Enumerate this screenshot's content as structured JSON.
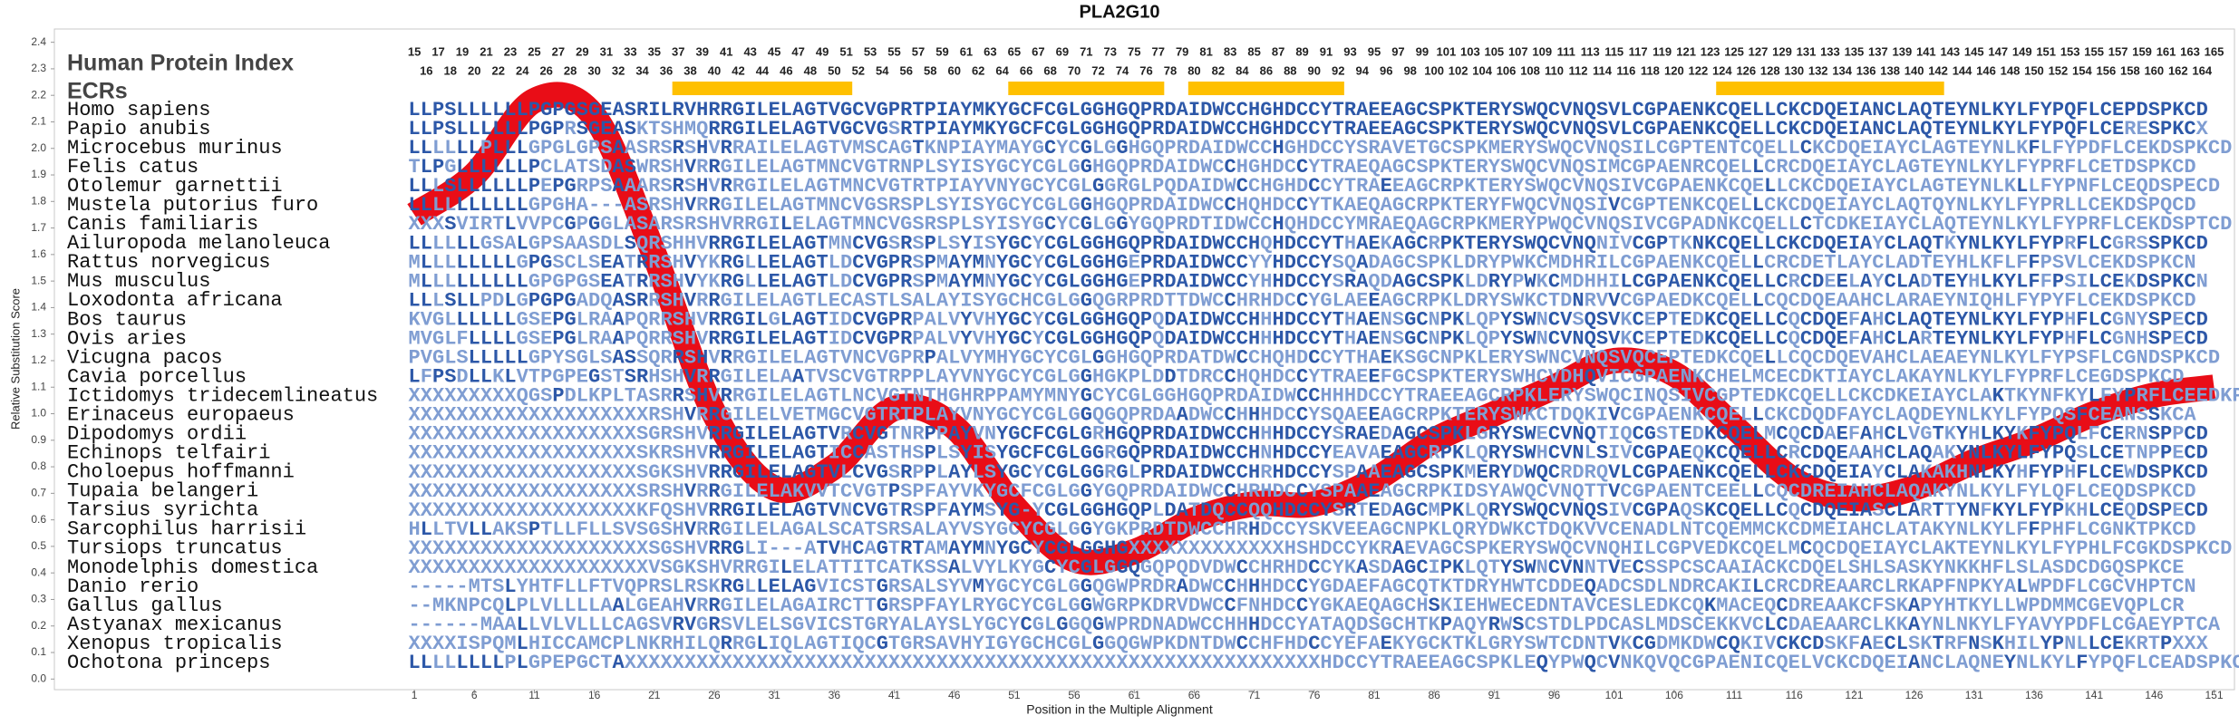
{
  "chart_data": {
    "type": "line",
    "title": "PLA2G10",
    "ylabel": "Relative Substitution Score",
    "xlabel": "Position in the Multiple Alignment",
    "xlim": [
      -29,
      152.7
    ],
    "ylim": [
      -0.04,
      2.45
    ],
    "xticks": [
      1,
      6,
      11,
      16,
      21,
      26,
      31,
      36,
      41,
      46,
      51,
      56,
      61,
      66,
      71,
      76,
      81,
      86,
      91,
      96,
      101,
      106,
      111,
      116,
      121,
      126,
      131,
      136,
      141,
      146,
      151
    ],
    "yticks": [
      {
        "value": 0,
        "label": "0.0"
      },
      0.1,
      0.2,
      0.3,
      0.4,
      0.5,
      0.6,
      0.7,
      0.8,
      0.9,
      {
        "value": 1,
        "label": "1.0"
      },
      1.1,
      1.2,
      1.3,
      1.4,
      1.5,
      1.6,
      1.7,
      1.8,
      1.9,
      {
        "value": 2,
        "label": "2.0"
      },
      2.1,
      2.2,
      2.3,
      2.4
    ],
    "x": [
      1,
      6,
      11,
      16,
      21,
      26,
      31,
      36,
      41,
      46,
      51,
      56,
      61,
      66,
      71,
      76,
      81,
      86,
      91,
      96,
      101,
      106,
      111,
      116,
      121,
      126,
      131,
      136,
      141,
      146,
      151
    ],
    "series": [
      {
        "color": "#e8000b",
        "values": [
          1.75,
          1.9,
          2.18,
          2.12,
          1.6,
          1.0,
          0.72,
          0.8,
          1.02,
          0.95,
          0.65,
          0.45,
          0.48,
          0.6,
          0.66,
          0.66,
          0.75,
          0.9,
          1.0,
          1.1,
          1.2,
          1.15,
          0.95,
          0.75,
          0.68,
          0.72,
          0.82,
          0.9,
          1.0,
          1.07,
          1.1
        ]
      }
    ],
    "alignment": {
      "index_label": "Human Protein Index",
      "human_index": [
        15,
        16,
        17,
        18,
        19,
        20,
        21,
        22,
        23,
        24,
        25,
        26,
        27,
        28,
        29,
        30,
        31,
        32,
        33,
        34,
        35,
        36,
        37,
        38,
        39,
        40,
        41,
        42,
        43,
        44,
        45,
        46,
        47,
        48,
        49,
        50,
        51,
        52,
        53,
        54,
        55,
        56,
        57,
        58,
        59,
        60,
        61,
        62,
        63,
        64,
        65,
        66,
        67,
        68,
        69,
        70,
        71,
        72,
        73,
        74,
        75,
        76,
        77,
        78,
        79,
        80,
        81,
        82,
        83,
        84,
        85,
        86,
        87,
        88,
        89,
        90,
        91,
        92,
        93,
        94,
        95,
        96,
        97,
        98,
        99,
        100,
        101,
        102,
        103,
        104,
        105,
        106,
        107,
        108,
        109,
        110,
        111,
        112,
        113,
        114,
        115,
        116,
        117,
        118,
        119,
        120,
        121,
        122,
        123,
        124,
        125,
        126,
        127,
        128,
        129,
        130,
        131,
        132,
        133,
        134,
        135,
        136,
        137,
        138,
        139,
        140,
        141,
        142,
        143,
        144,
        145,
        146,
        147,
        148,
        149,
        150,
        151,
        152,
        153,
        154,
        155,
        156,
        157,
        158,
        159,
        160,
        161,
        162,
        163,
        164,
        165
      ],
      "ecr_label": "ECRs",
      "ecr_color": "#ffc000",
      "ecrs": [
        [
          23,
          37
        ],
        [
          51,
          63
        ],
        [
          66,
          78
        ],
        [
          110,
          128
        ]
      ],
      "match_color": "#2d58a8",
      "mismatch_color": "#7f9dd2",
      "species": [
        "Homo sapiens",
        "Papio anubis",
        "Microcebus murinus",
        "Felis catus",
        "Otolemur garnettii",
        "Mustela putorius furo",
        "Canis familiaris",
        "Ailuropoda melanoleuca",
        "Rattus norvegicus",
        "Mus musculus",
        "Loxodonta africana",
        "Bos taurus",
        "Ovis aries",
        "Vicugna pacos",
        "Cavia porcellus",
        "Ictidomys tridecemlineatus",
        "Erinaceus europaeus",
        "Dipodomys ordii",
        "Echinops telfairi",
        "Choloepus hoffmanni",
        "Tupaia belangeri",
        "Tarsius syrichta",
        "Sarcophilus harrisii",
        "Tursiops truncatus",
        "Monodelphis domestica",
        "Danio rerio",
        "Gallus gallus",
        "Astyanax mexicanus",
        "Xenopus tropicalis",
        "Ochotona princeps"
      ],
      "sequences": [
        "LLPSLLLLLLPGPGSGEASRILRVHRRGILELAGTVGCVGPRTPIAYMKYGCFCGLGGHGQPRDAIDWCCHGHDCCYTRAEEAGCSPKTERYSWQCVNQSVLCGPAENKCQELLCKCDQEIANCLAQTEYNLKYLFYPQFLCEPDSPKCD",
        "LLPSLLLLLLPGPRSGEASKTSHMQRRGILELAGTVGCVGSRTPIAYMKYGCFCGLGGHGQPRDAIDWCCHGHDCCYTRAEEAGCSPKTERYSWQCVNQSVLCGPAENKCQELLCKCDQEIANCLAQTEYNLKYLFYPQFLCERESPKCX",
        "LLLLLLPLLLGPGLGPSAASRSRSHVRRAILELAGTVMSCAGTKNPIAYMAYGCYCGLGGHGQPRDAIDWCCHGHDCCYSRAVETGCSPKMERYSWQCVNQSILCGPTENTCQELLCKCDQEIAYCLAGTEYNLKFLFYPDFLCEKDSPKCD",
        "TLPGLLLLLLPCLATSDASWRSHVRRGILELAGTMNCVGTRNPLSYISYGCYCGLGGHGQPRDAIDWCCHGHDCCYTRAEQAGCSPKTERYSWQCVNQSIMCGPAENRCQELLCRCDQEIAYCLAGTEYNLKYLFYPRFLCETDSPKCD",
        "LLLSLLLLLLPEPGRPSAAARSRSHVRRGILELAGTMNCVGTRTPIAYVNYGCYCGLGGRGLPQDAIDWCCHGHDCCYTRAEEAGCRPKTERYSWQCVNQSIVCGPAENKCQELLCKCDQEIAYCLAGTEYNLKLLFYPNFLCEQDSPECD",
        "LLLLLLLLLLGPGHA---ASRSHVRRGILELAGTMNCVGSRSPLSYISYGCYCGLGGHGQPRDAIDWCCHQHDCCYTKAEQAGCRPKTERYFWQCVNQSIVCGPTENKCQELLCKCDQEIAYCLAQTQYNLKYLFYPRLLCEKDSPQCD",
        "XXXSVIRTLVVPCGPGGLASARSRSHVRRGILELAGTMNCVGSRSPLSYISYGCYCGLGGYGQPRDTIDWCCHQHDCCYMRAEQAGCRPKMERYPWQCVNQSIVCGPADNKCQELLCTCDKEIAYCLAQTEYNLKYLFYPRFLCEKDSPTCD",
        "LLLLLLGSALGPSAASDLSQRSHHVRRGILELAGTMNCVGSRSPLSYISYGCYCGLGGHGQPRDAIDWCCHQHDCCYTHAEKAGCRPKTERYSWQCVNQNIVCGPTKNKCQELLCKCDQEIAYCLAQTKYNLKYLFYPRFLCGRSSPKCD",
        "MLLLLLLLLGPGSCLSEATRRSHVYKRGLLELAGTLDCVGPRSPMAYMNYGCYCGLGGHGEPRDAIDWCCYYHDCCYSQADAGCSPKLDRYPWKCMDHRILCGPAENKCQELLCRCDETLAYCLADTEYHLKFLFFPSVLCEKDSPKCN",
        "MLLLLLLLLLGPGPGSEATRRSHVYKRGLLELAGTLDCVGPRSPMAYMNYGCYCGLGGHGEPRDAIDWCCYHHDCCYSRAQDAGCSPKLDRYPWKCMDHHILCGPAENKCQELLCRCDEELAYCLADTEYHLKYLFFPSILCEKDSPKCN",
        "LLLSLLPDLGPGPGADQASRRSHVRRGILELAGTLECASTLSALAYISYGCHCGLGGQGRPRDTTDWCCHRHDCCYGLAEEAGCRPKLDRYSWKCTDNRVVCGPAEDKCQELLCQCDQEAAHCLARAEYNIQHLFYPYFLCEKDSPKCD",
        "KVGLLLLLLGSEPGLRAAPQRRSHVRRGILGLAGTIDCVGPRPALVYVHYGCYCGLGGHGQPQDAIDWCCHHHDCCYTHAENSGCNPKLQPYSWNCVSQSVKCEPTEDKCQELLCQCDQEFAHCLAQTEYNLKYLFYPHFLCGNYSPECD",
        "MVGLFLLLLGSEPGLRAAPQRRSHVRRGILELAGTIDCVGPRPALVYVHYGCYCGLGGHGQPQDAIDWCCHHHDCCYTHAENSGCNPKLQPYSWNCVNQSVKCEPTEDKCQELLCQCDQEFAHCLARTEYNLKYLFYPHFLCGNHSPECD",
        "PVGLSLLLLLGPYSGLSASSQRRSHVRRGILELAGTVNCVGPRPALVYMHYGCYCGLGGHGQPRDATDWCCHQHDCCYTHAEKSGCNPKLERYSWNCVNQSVQCEPTEDKCQELLCQCDQEVAHCLAEAEYNLKYLFYPSFLCGNDSPKCD",
        "LFPSDLLKLVTPGPEGSTSRHSHVRRGILELAATVSCVGTRPPLAYVNYGCYCGLGGHGKPLDDTDRCCHQHDCCYTRAEEFGCSPKTERYSWHCVDHQVICGPAENKCHELMCECDKTIAYCLAKAYNLKYLFYPRFLCEGDSPKCD",
        "XXXXXXXXXQGSPDLKPLTASRRSHVRRGILELAGTLNCVGTNTHGHRPPAMYMNYGCYCGLGGHGQPRDAIDWCCHHHDCCYTRAEEAGCRPKLERYSWQCINQSIVCGPTEDKCQELLCKCDKEIAYCLAKTKYNFKYLFYPRFLCEEDKPKCD",
        "XXXXXXXXXXXXXXXXXXXXRSHVRRGILELVETMGCVGTRTPLAYVNYGCYCGLGGQGQPRDAADWCCHHHDCCYSQAEEAGCRPKTERYSWKCTDQKIVCGPAENKCQELLCKCDQDFAYCLAQDEYNLKYLFYPQSFCEANSSKCA",
        "XXXXXXXXXXXXXXXXXXXSGRSHVRRGILELAGTVRCVGTNRPPAYVNYGCFCGLGRHGQPRDAIDWCCHHHDCCYSRAEDAGCSPKLGRYSWECVNQTIQCGSTEDKCQELMCQCDAEFAHCLVGTKYHLKYKFYPQLFCERNSPPCD",
        "XXXXXXXXXXXXXXXXXXXSKRSHVRRGILELAGTICCASTHSPLSYISYGCFCGLGGRGQPRDAIDWCCHNHDCCYEAVAEAGCRPKLQRYSWHCVNLSIVCGPAEQKCQELLCRCDQEAAHCLAQAKYNLKYLFYPQSLCETNPPECD",
        "XXXXXXXXXXXXXXXXXXXSGKSHVRRGILELAGTVLCVGSRPPLAYLSYGCYCGLGGRGLPRDAIDWCCHRHDCCYSPAAEAGCSPKMERYDWQCRDRQVLCGPAENKCQELLCKCDQEIAYCLAKAKHNLKYHFYPHFLCEWDSPKCD",
        "XXXXXXXXXXXXXXXXXXXSRSHVRRGILELAKVVTCVGTPSPFAYVKYGCFCGLGGYGQPRDAIDWCCHRHDCCYSPAAEAGCRPKIDSYAWQCVNQTTVCGPAENTCEELLCQCDREIAHCLAQAKYNLKYLFYLQFLCEQDSPKCD",
        "XXXXXXXXXXXXXXXXXXXKFQSHVRRGILELAGTVNCVGTRSPFAYMSYG-YCGLGGHGQPLDATDQCCQQHDCCYSRTEDAGCMPKLQRYSWQCVNQSIVCGPAQSKCQELLCQCDQEIASCLARTTYNFKYLFYPKHLCEQDSPECD",
        "HLLTVLLAKSPTLLFLLSVSGSHVRRGILELAGALSCATSRSALAYVSYGCYCGLGGYGKPRDTDWCCHRHDCCYSKVEEAGCNPKLQRYDWKCTDQKVVCENADLNTCQEMMCKCDMEIAHCLATAKYNLKYLFFPHFLCGNKTPKCD",
        "XXXXXXXXXXXXXXXXXXXXSGSHVRRGLI---ATVHCAGTRTAMAYMNYGCYCGLGGHGXXXXXXXXXXXXXHSHDCCYKRAEVAGCSPKERYSWQCVNQHILCGPVEDKCQELMCQCDQEIAYCLAKTEYNLKYLFYPHLFCGKDSPKCD",
        "XXXXXXXXXXXXXXXXXXXXVSGKSHVRRGILELATTITCATKSSALVYLKYGCYCGLGGQGQPQDVDWCCHRHDCCYKASDAGCIPKLQTYSWNCVNNTVECSSPCSCAAIACKCDQELSHLSASKYNKKHFLSLASDCDGQSPKCE",
        "-----MTSLYHTFLLFTVQPRSLRSKRGLLELAGVICSTGRSALSYVMYGCYCGLGGQGWPRDRADWCCHHHDCCYGDAEFAGCQTKTDRYHWTCDDEQADCSDLNDRCAKILCRCDREAARCLRKAPFNPKYALWPDFLCGCVHPTCN",
        "--MKNPCQLPLVLLLLAALGEAHVRRGILELAGAIRCTTGRSPFAYLRYGCYCGLGGWGRPKDRVDWCCFNHDCCYGKAEQAGCHSKIEHWECEDNTAVCESLEDKCQKMACEQCDREAAKCFSKAPYHTKYLLWPDMMCGEVQPLCR",
        "------MAALLVLVLLLCAGSVRVGRSVLELSGVICSTGRYALAYSLYGCYCGLGGQGWPRDNADWCCHHHDCCYATAQDSGCHTKPAQYRWSCSTDLPDCASLMDSCEKKVCLCDAEAARCLKKAYNLNKYLFYAVYPDFLCGAEYPTCA",
        "XXXXISPQMLHICCAMCPLNKRHILQRRGLIQLAGTIQCGTGRSAVHYIGYGCHCGLGGQGWPKDNTDWCCHFHDCCYEFAEKYGCKTKLGRYSWTCDNTVKCGDMKDWCQKIVCKCDSKFAECLSKTRFNSKHILYPNLLCEKRTPXXX",
        "LLLLLLLLPLGPEPGCTAXXXXXXXXXXXXXXXXXXXXXXXXXXXXXXXXXXXXXXXXXXXXXXXXXXXXXXXXXXHDCCYTRAEEAGCSPKLEQYPWQCVNKQVQCGPAENICQELVCKCDQEIANCLAQNEYNLKYLFYPQFLCEADSPKCD"
      ]
    }
  }
}
